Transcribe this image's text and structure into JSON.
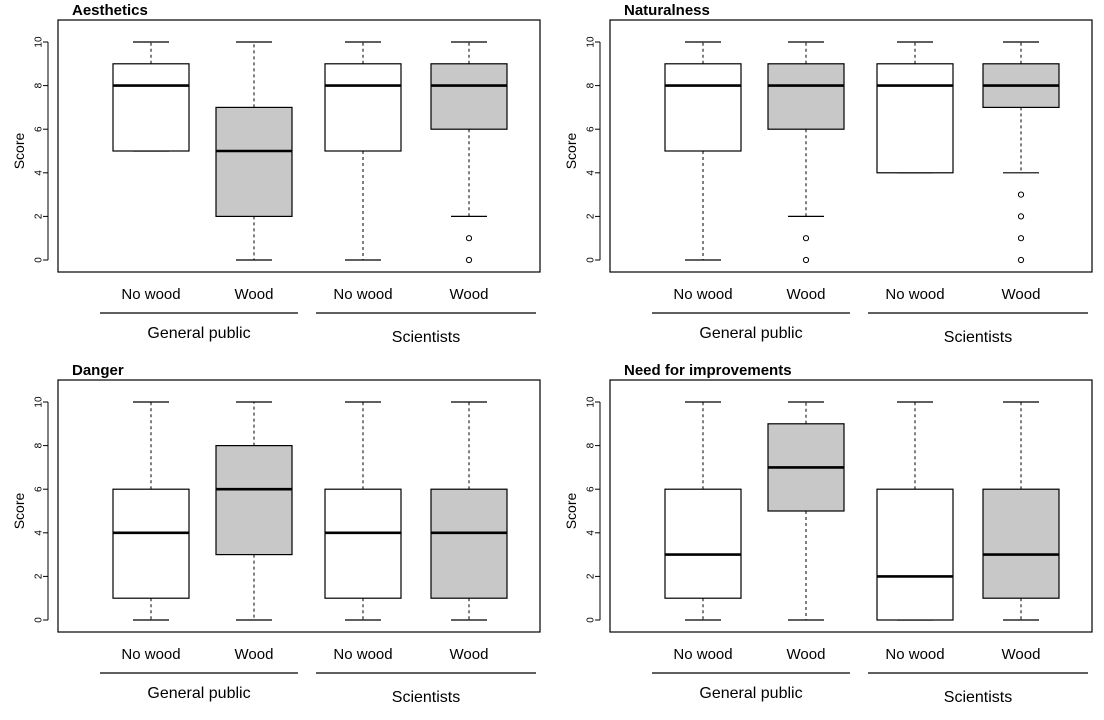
{
  "ylabel": "Score",
  "categories": [
    "No wood",
    "Wood",
    "No wood",
    "Wood"
  ],
  "groups": [
    "General public",
    "Scientists"
  ],
  "colors": {
    "no_wood_fill": "#ffffff",
    "wood_fill": "#c8c8c8",
    "line": "#000000"
  },
  "chart_data": [
    {
      "type": "boxplot",
      "title": "Aesthetics",
      "ylabel": "Score",
      "ylim": [
        0,
        10
      ],
      "yticks": [
        0,
        2,
        4,
        6,
        8,
        10
      ],
      "boxes": [
        {
          "group": "General public",
          "category": "No wood",
          "min": 5,
          "q1": 5,
          "median": 8,
          "q3": 9,
          "max": 10,
          "outliers": []
        },
        {
          "group": "General public",
          "category": "Wood",
          "min": 0,
          "q1": 2,
          "median": 5,
          "q3": 7,
          "max": 10,
          "outliers": []
        },
        {
          "group": "Scientists",
          "category": "No wood",
          "min": 0,
          "q1": 5,
          "median": 8,
          "q3": 9,
          "max": 10,
          "outliers": []
        },
        {
          "group": "Scientists",
          "category": "Wood",
          "min": 2,
          "q1": 6,
          "median": 8,
          "q3": 9,
          "max": 10,
          "outliers": [
            1,
            0
          ]
        }
      ]
    },
    {
      "type": "boxplot",
      "title": "Naturalness",
      "ylabel": "Score",
      "ylim": [
        0,
        10
      ],
      "yticks": [
        0,
        2,
        4,
        6,
        8,
        10
      ],
      "boxes": [
        {
          "group": "General public",
          "category": "No wood",
          "min": 0,
          "q1": 5,
          "median": 8,
          "q3": 9,
          "max": 10,
          "outliers": []
        },
        {
          "group": "General public",
          "category": "Wood",
          "min": 2,
          "q1": 6,
          "median": 8,
          "q3": 9,
          "max": 10,
          "outliers": [
            1,
            0
          ]
        },
        {
          "group": "Scientists",
          "category": "No wood",
          "min": 4,
          "q1": 4,
          "median": 8,
          "q3": 9,
          "max": 10,
          "outliers": []
        },
        {
          "group": "Scientists",
          "category": "Wood",
          "min": 4,
          "q1": 7,
          "median": 8,
          "q3": 9,
          "max": 10,
          "outliers": [
            3,
            2,
            1,
            0
          ]
        }
      ]
    },
    {
      "type": "boxplot",
      "title": "Danger",
      "ylabel": "Score",
      "ylim": [
        0,
        10
      ],
      "yticks": [
        0,
        2,
        4,
        6,
        8,
        10
      ],
      "boxes": [
        {
          "group": "General public",
          "category": "No wood",
          "min": 0,
          "q1": 1,
          "median": 4,
          "q3": 6,
          "max": 10,
          "outliers": []
        },
        {
          "group": "General public",
          "category": "Wood",
          "min": 0,
          "q1": 3,
          "median": 6,
          "q3": 8,
          "max": 10,
          "outliers": []
        },
        {
          "group": "Scientists",
          "category": "No wood",
          "min": 0,
          "q1": 1,
          "median": 4,
          "q3": 6,
          "max": 10,
          "outliers": []
        },
        {
          "group": "Scientists",
          "category": "Wood",
          "min": 0,
          "q1": 1,
          "median": 4,
          "q3": 6,
          "max": 10,
          "outliers": []
        }
      ]
    },
    {
      "type": "boxplot",
      "title": "Need for improvements",
      "ylabel": "Score",
      "ylim": [
        0,
        10
      ],
      "yticks": [
        0,
        2,
        4,
        6,
        8,
        10
      ],
      "boxes": [
        {
          "group": "General public",
          "category": "No wood",
          "min": 0,
          "q1": 1,
          "median": 3,
          "q3": 6,
          "max": 10,
          "outliers": []
        },
        {
          "group": "General public",
          "category": "Wood",
          "min": 0,
          "q1": 5,
          "median": 7,
          "q3": 9,
          "max": 10,
          "outliers": []
        },
        {
          "group": "Scientists",
          "category": "No wood",
          "min": 0,
          "q1": 0,
          "median": 2,
          "q3": 6,
          "max": 10,
          "outliers": []
        },
        {
          "group": "Scientists",
          "category": "Wood",
          "min": 0,
          "q1": 1,
          "median": 3,
          "q3": 6,
          "max": 10,
          "outliers": []
        }
      ]
    }
  ]
}
